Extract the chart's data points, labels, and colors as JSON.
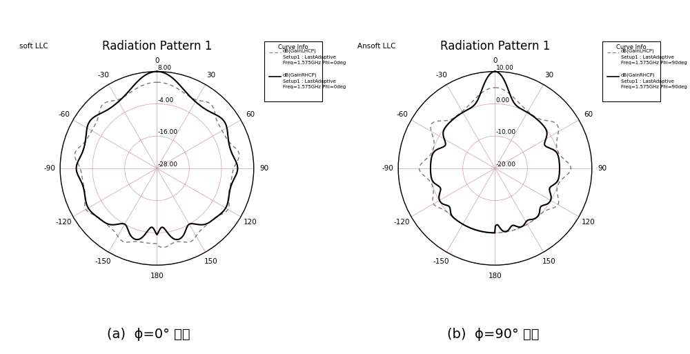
{
  "title": "Radiation Pattern 1",
  "left_label": "soft LLC",
  "right_label": "Ansoft LLC",
  "subtitle_a": "(a)  ϕ=0° 平面",
  "subtitle_b": "(b)  ϕ=90° 平面",
  "plot_a": {
    "r_ticks": [
      8.0,
      -4.0,
      -16.0,
      -28.0
    ],
    "r_max": 8.0,
    "r_min": -28.0,
    "legend_lines": [
      "dB(GainLHCP)",
      "Setup1 : LastAdaptive",
      "Freq=1.575GHz Phi=0deg",
      "dB(GainRHCP)",
      "Setup1 : LastAdaptive",
      "Freq=1.575GHz Phi=0deg"
    ]
  },
  "plot_b": {
    "r_ticks": [
      10.0,
      0.0,
      -10.0,
      -20.0
    ],
    "r_max": 10.0,
    "r_min": -20.0,
    "legend_lines": [
      "dB(GainLHCP)",
      "Setup1 : LastAdaptive",
      "Freq=1.575GHz Phi=90deg",
      "dB(GainRHCP)",
      "Setup1 : LastAdaptive",
      "Freq=1.575GHz Phi=90deg"
    ]
  },
  "angle_ticks": [
    0,
    30,
    60,
    90,
    120,
    150,
    180,
    -150,
    -120,
    -90,
    -60,
    -30
  ],
  "bg_color": "#ffffff",
  "grid_color": "#aaaaaa",
  "solid_line_color": "#000000",
  "dashed_line_color": "#555555"
}
